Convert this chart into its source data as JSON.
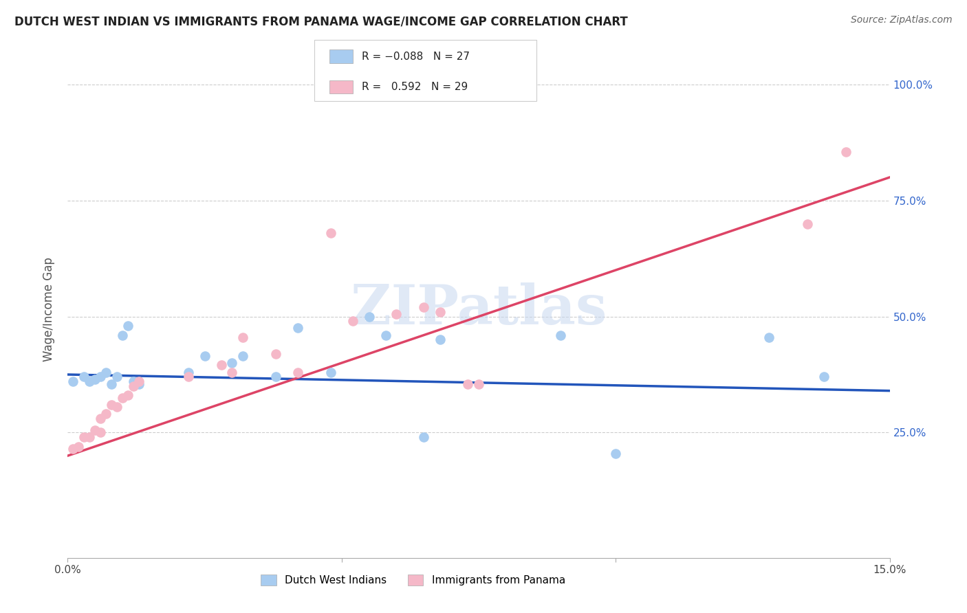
{
  "title": "DUTCH WEST INDIAN VS IMMIGRANTS FROM PANAMA WAGE/INCOME GAP CORRELATION CHART",
  "source": "Source: ZipAtlas.com",
  "ylabel": "Wage/Income Gap",
  "xmin": 0.0,
  "xmax": 0.15,
  "ymin": 0.0,
  "ymax": 1.05,
  "legend_labels": [
    "Dutch West Indians",
    "Immigrants from Panama"
  ],
  "r_blue": -0.088,
  "n_blue": 27,
  "r_pink": 0.592,
  "n_pink": 29,
  "blue_color": "#A8CCF0",
  "pink_color": "#F5B8C8",
  "blue_line_color": "#2255BB",
  "pink_line_color": "#DD4466",
  "watermark": "ZIPatlas",
  "blue_x": [
    0.001,
    0.003,
    0.004,
    0.005,
    0.006,
    0.007,
    0.008,
    0.009,
    0.01,
    0.011,
    0.012,
    0.013,
    0.022,
    0.025,
    0.03,
    0.032,
    0.038,
    0.042,
    0.048,
    0.055,
    0.058,
    0.065,
    0.068,
    0.09,
    0.1,
    0.128,
    0.138
  ],
  "blue_y": [
    0.36,
    0.37,
    0.36,
    0.365,
    0.37,
    0.38,
    0.355,
    0.37,
    0.46,
    0.48,
    0.36,
    0.355,
    0.38,
    0.415,
    0.4,
    0.415,
    0.37,
    0.475,
    0.38,
    0.5,
    0.46,
    0.24,
    0.45,
    0.46,
    0.205,
    0.455,
    0.37
  ],
  "pink_x": [
    0.001,
    0.002,
    0.003,
    0.004,
    0.005,
    0.006,
    0.006,
    0.007,
    0.008,
    0.009,
    0.01,
    0.011,
    0.012,
    0.013,
    0.022,
    0.028,
    0.03,
    0.032,
    0.038,
    0.042,
    0.048,
    0.052,
    0.06,
    0.065,
    0.068,
    0.073,
    0.075,
    0.135,
    0.142
  ],
  "pink_y": [
    0.215,
    0.22,
    0.24,
    0.24,
    0.255,
    0.25,
    0.28,
    0.29,
    0.31,
    0.305,
    0.325,
    0.33,
    0.35,
    0.36,
    0.37,
    0.395,
    0.38,
    0.455,
    0.42,
    0.38,
    0.68,
    0.49,
    0.505,
    0.52,
    0.51,
    0.355,
    0.355,
    0.7,
    0.855
  ],
  "blue_line_x0": 0.0,
  "blue_line_y0": 0.375,
  "blue_line_x1": 0.15,
  "blue_line_y1": 0.34,
  "pink_line_x0": 0.0,
  "pink_line_y0": 0.2,
  "pink_line_x1": 0.15,
  "pink_line_y1": 0.8
}
